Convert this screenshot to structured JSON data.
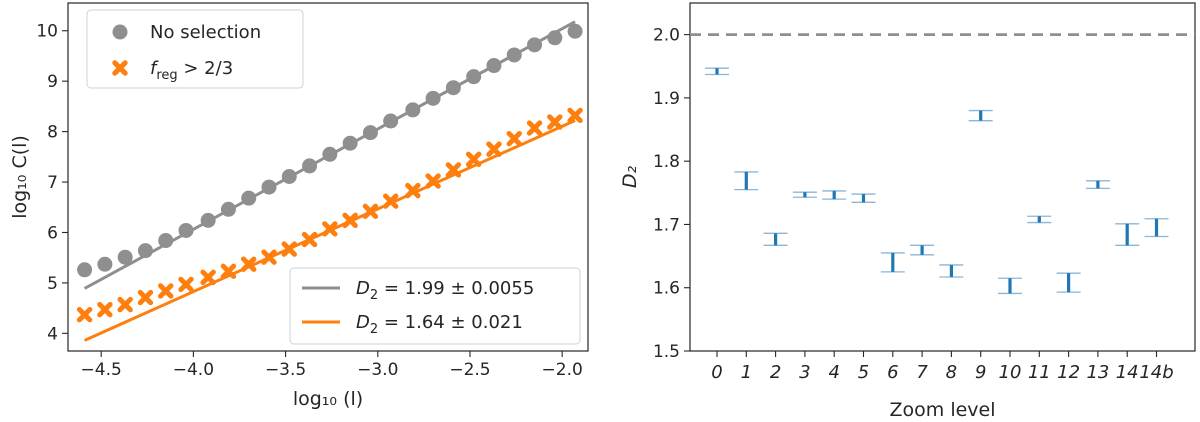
{
  "chart_data": [
    {
      "type": "scatter",
      "xlabel": "log₁₀ (l)",
      "ylabel": "log₁₀ C(l)",
      "xlim": [
        -4.68,
        -1.86
      ],
      "ylim": [
        3.65,
        10.55
      ],
      "xticks": [
        -4.5,
        -4.0,
        -3.5,
        -3.0,
        -2.5,
        -2.0
      ],
      "xtick_labels": [
        "−4.5",
        "−4.0",
        "−3.5",
        "−3.0",
        "−2.5",
        "−2.0"
      ],
      "yticks": [
        4,
        5,
        6,
        7,
        8,
        9,
        10
      ],
      "ytick_labels": [
        "4",
        "5",
        "6",
        "7",
        "8",
        "9",
        "10"
      ],
      "grid": false,
      "colors": {
        "gray": "#8f8f8f",
        "orange": "#ff7f0e"
      },
      "series": [
        {
          "name": "No selection",
          "marker": "circle",
          "color": "#8f8f8f",
          "x": [
            -4.59,
            -4.48,
            -4.37,
            -4.26,
            -4.15,
            -4.04,
            -3.92,
            -3.81,
            -3.7,
            -3.59,
            -3.48,
            -3.37,
            -3.26,
            -3.15,
            -3.04,
            -2.93,
            -2.81,
            -2.7,
            -2.59,
            -2.48,
            -2.37,
            -2.26,
            -2.15,
            -2.04,
            -1.93
          ],
          "y": [
            5.26,
            5.37,
            5.51,
            5.64,
            5.84,
            6.04,
            6.24,
            6.46,
            6.68,
            6.9,
            7.11,
            7.32,
            7.55,
            7.77,
            7.98,
            8.21,
            8.43,
            8.66,
            8.87,
            9.09,
            9.31,
            9.52,
            9.72,
            9.86,
            9.99
          ]
        },
        {
          "name": "f_reg > 2/3",
          "marker": "x",
          "color": "#ff7f0e",
          "x": [
            -4.59,
            -4.48,
            -4.37,
            -4.26,
            -4.15,
            -4.04,
            -3.92,
            -3.81,
            -3.7,
            -3.59,
            -3.48,
            -3.37,
            -3.26,
            -3.15,
            -3.04,
            -2.93,
            -2.81,
            -2.7,
            -2.59,
            -2.48,
            -2.37,
            -2.26,
            -2.15,
            -2.04,
            -1.93
          ],
          "y": [
            4.37,
            4.47,
            4.57,
            4.71,
            4.84,
            4.97,
            5.11,
            5.23,
            5.37,
            5.51,
            5.67,
            5.86,
            6.07,
            6.24,
            6.42,
            6.62,
            6.83,
            7.02,
            7.24,
            7.45,
            7.65,
            7.86,
            8.07,
            8.19,
            8.32
          ]
        },
        {
          "name": "D₂ = 1.99 ± 0.0055",
          "type": "line",
          "color": "#8f8f8f",
          "x": [
            -4.59,
            -1.93
          ],
          "y": [
            4.89,
            10.18
          ]
        },
        {
          "name": "D₂ = 1.64 ± 0.021",
          "type": "line",
          "color": "#ff7f0e",
          "x": [
            -4.59,
            -1.93
          ],
          "y": [
            3.86,
            8.22
          ]
        }
      ],
      "legend_markers": {
        "placement": "upper-left",
        "items": [
          {
            "marker": "circle",
            "color": "#8f8f8f",
            "base": "No selection",
            "sub": "",
            "rest": ""
          },
          {
            "marker": "x",
            "color": "#ff7f0e",
            "base": "f",
            "sub": "reg",
            "rest": " > 2/3"
          }
        ]
      },
      "legend_lines": {
        "placement": "lower-right",
        "items": [
          {
            "color": "#8f8f8f",
            "base": "D",
            "sub": "2",
            "rest": " = 1.99 ± 0.0055"
          },
          {
            "color": "#ff7f0e",
            "base": "D",
            "sub": "2",
            "rest": " = 1.64 ± 0.021"
          }
        ]
      }
    },
    {
      "type": "errorbar",
      "xlabel": "Zoom level",
      "ylabel": "D₂",
      "ylim": [
        1.5,
        2.05
      ],
      "yticks": [
        1.5,
        1.6,
        1.7,
        1.8,
        1.9,
        2.0
      ],
      "ytick_labels": [
        "1.5",
        "1.6",
        "1.7",
        "1.8",
        "1.9",
        "2.0"
      ],
      "reference_line": {
        "y": 2.0,
        "style": "dashed",
        "color": "#8f8f8f"
      },
      "grid": false,
      "color": "#1f77b4",
      "categories": [
        "0",
        "1",
        "2",
        "3",
        "4",
        "5",
        "6",
        "7",
        "8",
        "9",
        "10",
        "11",
        "12",
        "13",
        "14",
        "14b"
      ],
      "low": [
        1.937,
        1.755,
        1.667,
        1.743,
        1.74,
        1.735,
        1.625,
        1.652,
        1.617,
        1.864,
        1.591,
        1.703,
        1.593,
        1.757,
        1.667,
        1.681
      ],
      "high": [
        1.947,
        1.783,
        1.686,
        1.751,
        1.753,
        1.748,
        1.655,
        1.667,
        1.636,
        1.88,
        1.615,
        1.713,
        1.623,
        1.769,
        1.701,
        1.709
      ]
    }
  ]
}
